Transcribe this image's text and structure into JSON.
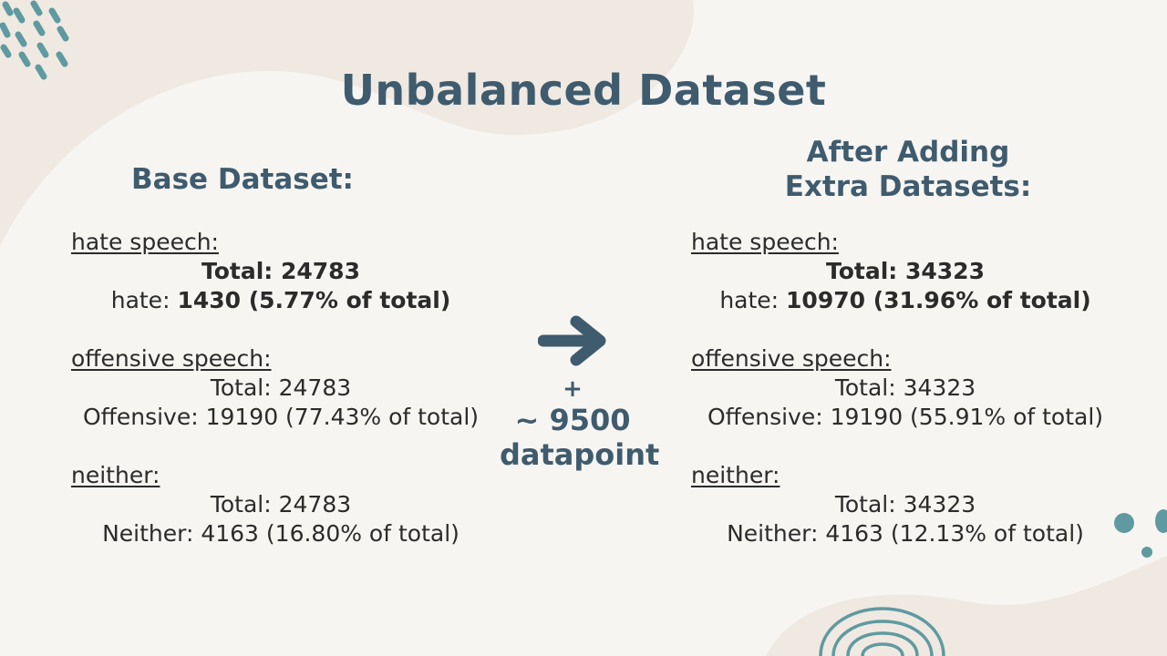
{
  "slide": {
    "title": "Unbalanced Dataset",
    "left": {
      "heading": "Base Dataset:",
      "hate": {
        "label": "hate speech:",
        "total_line": "Total: 24783",
        "prefix": "hate: ",
        "value": "1430 (5.77% of total)"
      },
      "offensive": {
        "label": "offensive speech:",
        "total_line": "Total: 24783",
        "count_line": "Offensive: 19190 (77.43% of total)"
      },
      "neither": {
        "label": "neither:",
        "total_line": "Total: 24783",
        "count_line": "Neither: 4163 (16.80% of total)"
      }
    },
    "middle": {
      "arrow_icon": "arrow-right-icon",
      "plus": "+",
      "amount": "~ 9500",
      "unit": "datapoint"
    },
    "right": {
      "heading_line1": "After Adding",
      "heading_line2": "Extra Datasets:",
      "hate": {
        "label": "hate speech:",
        "total_line": "Total: 34323",
        "prefix": "hate: ",
        "value": "10970 (31.96% of total)"
      },
      "offensive": {
        "label": "offensive speech:",
        "total_line": "Total: 34323",
        "count_line": "Offensive: 19190 (55.91% of total)"
      },
      "neither": {
        "label": "neither:",
        "total_line": "Total: 34323",
        "count_line": "Neither: 4163 (12.13% of total)"
      }
    }
  },
  "colors": {
    "background": "#f7f5f2",
    "blob": "#efe9e2",
    "accent_blue": "#3f5b6e",
    "teal": "#5f9aa0",
    "text": "#2b2b2b"
  }
}
